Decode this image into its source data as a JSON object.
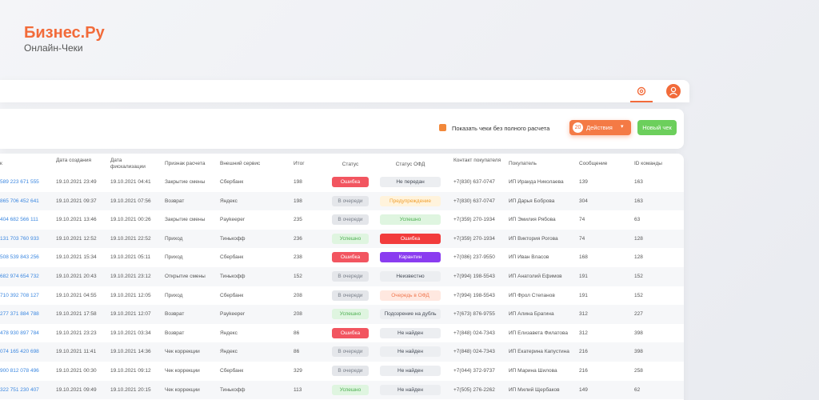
{
  "brand": {
    "title": "Бизнес.Ру",
    "subtitle": "Онлайн-Чеки"
  },
  "toolbar": {
    "checkbox_label": "Показать чеки без полного расчета",
    "actions_count": "20",
    "actions_label": "Действия",
    "new_button": "Новый чек"
  },
  "table": {
    "columns": [
      "к",
      "Дата создания",
      "Дата фискализации",
      "Признак расчета",
      "Внешний сервис",
      "Итог",
      "Статус",
      "Статус ОФД",
      "Контакт покупателя",
      "Покупатель",
      "Сообщение",
      "ID команды"
    ],
    "rows": [
      [
        "589 223 671 555",
        "19.10.2021 23:49",
        "19.10.2021 04:41",
        "Закрытие смены",
        "Сбербанк",
        "198",
        {
          "label": "Ошибка",
          "bg": "#f25560",
          "fg": "#ffffff"
        },
        {
          "label": "Не передан",
          "bg": "#eceef1",
          "fg": "#444a55"
        },
        "+7(830) 637-0747",
        "ИП Ираида Николаева",
        "139",
        "163"
      ],
      [
        "865 706 452 641",
        "19.10.2021 09:37",
        "19.10.2021 07:56",
        "Возврат",
        "Яндекс",
        "198",
        {
          "label": "В очереди",
          "bg": "#e4e6ea",
          "fg": "#7a808a"
        },
        {
          "label": "Предупреждение",
          "bg": "#fff3dc",
          "fg": "#f0a030"
        },
        "+7(830) 637-0747",
        "ИП Дарья Боброва",
        "304",
        "163"
      ],
      [
        "404 682 566 111",
        "19.10.2021 13:46",
        "19.10.2021 00:26",
        "Закрытие смены",
        "Paykeeper",
        "235",
        {
          "label": "В очереди",
          "bg": "#e4e6ea",
          "fg": "#7a808a"
        },
        {
          "label": "Успешно",
          "bg": "#dff5e0",
          "fg": "#4caf50"
        },
        "+7(359) 270-1934",
        "ИП Эмилия Рябова",
        "74",
        "63"
      ],
      [
        "131 703 760 933",
        "19.10.2021 12:52",
        "19.10.2021 22:52",
        "Приход",
        "Тинькофф",
        "236",
        {
          "label": "Успешно",
          "bg": "#dff5e0",
          "fg": "#4caf50"
        },
        {
          "label": "Ошибка",
          "bg": "#f23c3c",
          "fg": "#ffffff"
        },
        "+7(359) 270-1934",
        "ИП Виктория Рогова",
        "74",
        "128"
      ],
      [
        "508 539 843 256",
        "19.10.2021 15:34",
        "19.10.2021 05:11",
        "Приход",
        "Сбербанк",
        "238",
        {
          "label": "Ошибка",
          "bg": "#f25560",
          "fg": "#ffffff"
        },
        {
          "label": "Карантин",
          "bg": "#8a3cf0",
          "fg": "#ffffff"
        },
        "+7(086) 237-9550",
        "ИП Иван Власов",
        "168",
        "128"
      ],
      [
        "682 974 654 732",
        "19.10.2021 20:43",
        "19.10.2021 23:12",
        "Открытие смены",
        "Тинькофф",
        "152",
        {
          "label": "В очереди",
          "bg": "#e4e6ea",
          "fg": "#7a808a"
        },
        {
          "label": "Неизвестно",
          "bg": "#eceef1",
          "fg": "#444a55"
        },
        "+7(994) 198-5543",
        "ИП Анатолий Ефимов",
        "191",
        "152"
      ],
      [
        "710 392 708 127",
        "19.10.2021 04:55",
        "19.10.2021 12:05",
        "Приход",
        "Сбербанк",
        "208",
        {
          "label": "В очереди",
          "bg": "#e4e6ea",
          "fg": "#7a808a"
        },
        {
          "label": "Очередь в ОФД",
          "bg": "#ffe8e0",
          "fg": "#f07850"
        },
        "+7(994) 198-5543",
        "ИП Фрол Степанов",
        "191",
        "152"
      ],
      [
        "277 371 884 788",
        "19.10.2021 17:58",
        "19.10.2021 12:07",
        "Возврат",
        "Paykeeper",
        "208",
        {
          "label": "Успешно",
          "bg": "#dff5e0",
          "fg": "#4caf50"
        },
        {
          "label": "Подозрение на дубль",
          "bg": "#eceef1",
          "fg": "#444a55"
        },
        "+7(673) 876-9755",
        "ИП Алина Брагина",
        "312",
        "227"
      ],
      [
        "478 930 897 784",
        "19.10.2021 23:23",
        "19.10.2021 03:34",
        "Возврат",
        "Яндекс",
        "86",
        {
          "label": "Ошибка",
          "bg": "#f25560",
          "fg": "#ffffff"
        },
        {
          "label": "Не найден",
          "bg": "#eceef1",
          "fg": "#444a55"
        },
        "+7(848) 024-7343",
        "ИП Елизавета Филатова",
        "312",
        "398"
      ],
      [
        "074 165 420 698",
        "19.10.2021 11:41",
        "19.10.2021 14:36",
        "Чек коррекции",
        "Яндекс",
        "86",
        {
          "label": "В очереди",
          "bg": "#e4e6ea",
          "fg": "#7a808a"
        },
        {
          "label": "Не найден",
          "bg": "#eceef1",
          "fg": "#444a55"
        },
        "+7(848) 024-7343",
        "ИП Екатерина Капустина",
        "216",
        "398"
      ],
      [
        "900 812 078 496",
        "19.10.2021 00:30",
        "19.10.2021 09:12",
        "Чек коррекции",
        "Сбербанк",
        "329",
        {
          "label": "В очереди",
          "bg": "#e4e6ea",
          "fg": "#7a808a"
        },
        {
          "label": "Не найден",
          "bg": "#eceef1",
          "fg": "#444a55"
        },
        "+7(044) 372-9737",
        "ИП Марина Шилова",
        "216",
        "258"
      ],
      [
        "322 751 230 407",
        "19.10.2021 09:49",
        "19.10.2021 20:15",
        "Чек коррекции",
        "Тинькофф",
        "113",
        {
          "label": "Успешно",
          "bg": "#dff5e0",
          "fg": "#4caf50"
        },
        {
          "label": "Не найден",
          "bg": "#eceef1",
          "fg": "#444a55"
        },
        "+7(505) 276-2262",
        "ИП Милий Щербаков",
        "149",
        "62"
      ]
    ]
  }
}
